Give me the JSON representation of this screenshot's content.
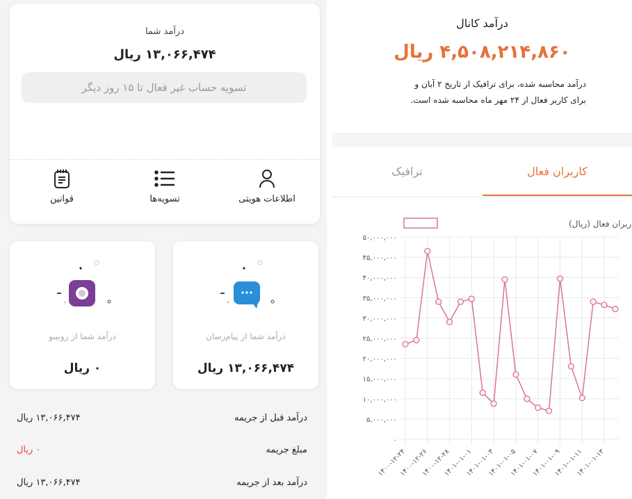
{
  "income_card": {
    "title": "درآمد شما",
    "amount": "۱۳,۰۶۶,۴۷۴ ریال",
    "settle_notice": "تسویه حساب غیر فعال تا ۱۵ روز دیگر",
    "actions": [
      {
        "label": "اطلاعات هویتی",
        "icon": "user-icon"
      },
      {
        "label": "تسویه‌ها",
        "icon": "list-icon"
      },
      {
        "label": "قوانین",
        "icon": "notepad-icon"
      }
    ]
  },
  "sources": [
    {
      "title": "درآمد شما از پیام‌رسان",
      "amount": "۱۳,۰۶۶,۴۷۴ ریال",
      "icon": "messenger-bubble-icon",
      "color": "#2a8fd8"
    },
    {
      "title": "درآمد شما از روبینو",
      "amount": "۰ ریال",
      "icon": "rubino-camera-icon",
      "color": "#7b3f96"
    }
  ],
  "summary": [
    {
      "label": "درآمد قبل از جریمه",
      "value": "۱۳,۰۶۶,۴۷۴ ریال",
      "color": "#222222"
    },
    {
      "label": "مبلغ جریمه",
      "value": "۰ ریال",
      "color": "#e0474c"
    },
    {
      "label": "درآمد بعد از جریمه",
      "value": "۱۳,۰۶۶,۴۷۴ ریال",
      "color": "#222222"
    }
  ],
  "channel": {
    "title": "درآمد کانال",
    "amount": "۴,۵۰۸,۲۱۴,۸۶۰ ریال",
    "accent": "#e8703a",
    "description_line1": "درآمد محاسبه شده، برای ترافیک از تاریخ ۲ آبان و",
    "description_line2": "برای کاربر فعال از ۲۴ مهر ماه محاسبه شده است.",
    "tabs": [
      {
        "label": "کاربران فعال",
        "active": true
      },
      {
        "label": "ترافیک",
        "active": false
      }
    ]
  },
  "chart_data": {
    "type": "line",
    "legend_position": "top",
    "grid": true,
    "line_color": "#d9739a",
    "series": [
      {
        "name": "درآمد روزانه کاربران فعال (ریال)",
        "values": [
          23500000,
          24500000,
          46500000,
          34000000,
          29000000,
          34000000,
          34700000,
          11500000,
          8800000,
          39500000,
          16000000,
          10000000,
          7800000,
          7000000,
          39700000,
          18000000,
          10200000,
          34000000,
          33200000,
          32200000
        ]
      }
    ],
    "x": [
      "1400-12-24",
      "1400-12-25",
      "1400-12-26",
      "1400-12-27",
      "1400-12-28",
      "1400-12-29",
      "1401-01-01",
      "1401-01-02",
      "1401-01-03",
      "1401-01-04",
      "1401-01-05",
      "1401-01-06",
      "1401-01-07",
      "1401-01-08",
      "1401-01-09",
      "1401-01-10",
      "1401-01-11",
      "1401-01-12",
      "1401-01-13",
      "1401-01-14"
    ],
    "x_tick_labels": [
      "۱۴۰۰-۱۲-۲۴",
      "۱۴۰۰-۱۲-۲۶",
      "۱۴۰۰-۱۲-۲۸",
      "۱۴۰۱-۰۱-۰۱",
      "۱۴۰۱-۰۱-۰۳",
      "۱۴۰۱-۰۱-۰۵",
      "۱۴۰۱-۰۱-۰۷",
      "۱۴۰۱-۰۱-۰۹",
      "۱۴۰۱-۰۱-۱۱",
      "۱۴۰۱-۰۱-۱۳"
    ],
    "y_tick_labels": [
      "۵۰,۰۰۰,۰۰۰",
      "۴۵,۰۰۰,۰۰۰",
      "۴۰,۰۰۰,۰۰۰",
      "۳۵,۰۰۰,۰۰۰",
      "۳۰,۰۰۰,۰۰۰",
      "۲۵,۰۰۰,۰۰۰",
      "۲۰,۰۰۰,۰۰۰",
      "۱۵,۰۰۰,۰۰۰",
      "۱۰,۰۰۰,۰۰۰",
      "۵,۰۰۰,۰۰۰",
      "۰"
    ],
    "ylim": [
      0,
      50000000
    ]
  }
}
